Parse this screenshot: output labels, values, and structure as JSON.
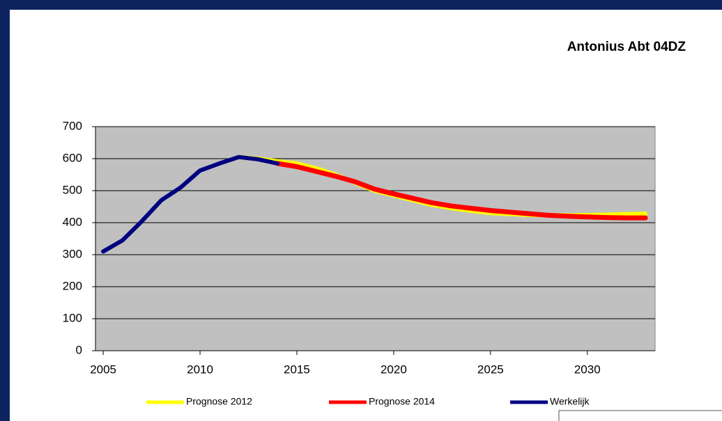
{
  "chart_data": {
    "type": "line",
    "title": "Antonius Abt 04DZ",
    "x": [
      2005,
      2006,
      2007,
      2008,
      2009,
      2010,
      2011,
      2012,
      2013,
      2014,
      2015,
      2016,
      2017,
      2018,
      2019,
      2020,
      2021,
      2022,
      2023,
      2024,
      2025,
      2026,
      2027,
      2028,
      2029,
      2030,
      2031,
      2032,
      2033
    ],
    "series": [
      {
        "name": "Prognose 2012",
        "color": "#ffff00",
        "values": [
          null,
          null,
          null,
          null,
          null,
          null,
          null,
          605,
          600,
          592,
          585,
          570,
          550,
          525,
          500,
          485,
          470,
          455,
          445,
          437,
          430,
          427,
          424,
          423,
          423,
          424,
          425,
          427,
          428
        ]
      },
      {
        "name": "Prognose 2014",
        "color": "#ff0000",
        "values": [
          null,
          null,
          null,
          null,
          null,
          null,
          null,
          null,
          null,
          585,
          575,
          560,
          545,
          528,
          505,
          490,
          476,
          462,
          452,
          445,
          438,
          433,
          428,
          423,
          420,
          418,
          416,
          415,
          415
        ]
      },
      {
        "name": "Werkelijk",
        "color": "#000080",
        "values": [
          310,
          345,
          405,
          470,
          510,
          563,
          585,
          605,
          598,
          585,
          null,
          null,
          null,
          null,
          null,
          null,
          null,
          null,
          null,
          null,
          null,
          null,
          null,
          null,
          null,
          null,
          null,
          null,
          null
        ]
      }
    ],
    "xlim": [
      2004.6,
      2033.5
    ],
    "xticks": [
      2005,
      2010,
      2015,
      2020,
      2025,
      2030
    ],
    "ylim": [
      0,
      700
    ],
    "yticks": [
      0,
      100,
      200,
      300,
      400,
      500,
      600,
      700
    ],
    "grid": true
  }
}
